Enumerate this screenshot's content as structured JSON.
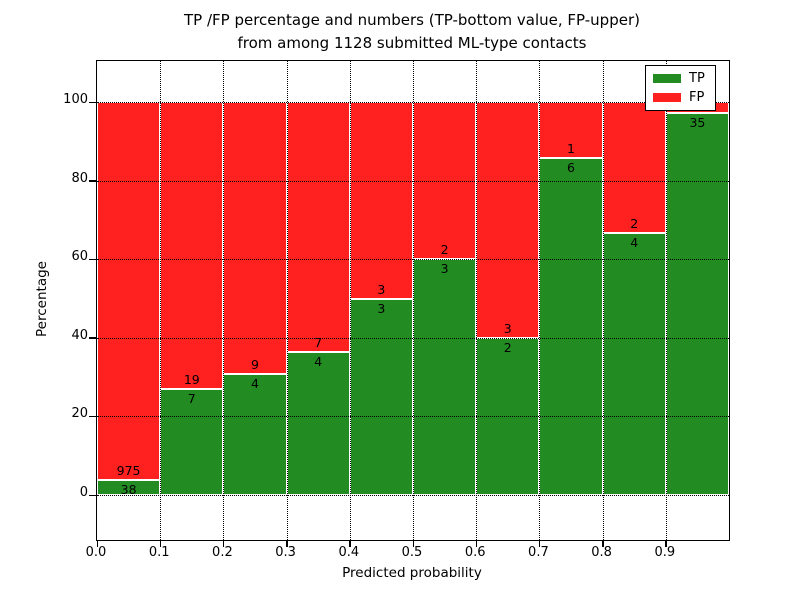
{
  "title": {
    "line1": "TP /FP percentage and numbers (TP-bottom value, FP-upper)",
    "line2": "from among 1128 submitted ML-type contacts"
  },
  "axes": {
    "x_label": "Predicted probability",
    "y_label": "Percentage",
    "x_ticks": [
      "0.0",
      "0.1",
      "0.2",
      "0.3",
      "0.4",
      "0.5",
      "0.6",
      "0.7",
      "0.8",
      "0.9"
    ],
    "y_ticks": [
      "0",
      "20",
      "40",
      "60",
      "80",
      "100"
    ]
  },
  "legend": [
    {
      "label": "TP",
      "color": "#228B22"
    },
    {
      "label": "FP",
      "color": "#FF2020"
    }
  ],
  "chart_data": {
    "type": "bar",
    "stacked": true,
    "normalized": "percent",
    "title": "TP /FP percentage and numbers (TP-bottom value, FP-upper) from among 1128 submitted ML-type contacts",
    "xlabel": "Predicted probability",
    "ylabel": "Percentage",
    "bins": [
      "0.0-0.1",
      "0.1-0.2",
      "0.2-0.3",
      "0.3-0.4",
      "0.4-0.5",
      "0.5-0.6",
      "0.6-0.7",
      "0.7-0.8",
      "0.8-0.9",
      "0.9-1.0"
    ],
    "series": [
      {
        "name": "TP",
        "color": "#228B22",
        "counts": [
          38,
          7,
          4,
          4,
          3,
          3,
          2,
          6,
          4,
          35
        ]
      },
      {
        "name": "FP",
        "color": "#FF2020",
        "counts": [
          975,
          19,
          9,
          7,
          3,
          2,
          3,
          1,
          2,
          1
        ]
      }
    ],
    "tp_percent": [
      3.75,
      26.92,
      30.77,
      36.36,
      50.0,
      60.0,
      40.0,
      85.71,
      66.67,
      97.22
    ],
    "total_contacts": 1128,
    "xlim": [
      0.0,
      1.0
    ],
    "ylim": [
      -12,
      111
    ],
    "grid": "dotted",
    "legend_position": "upper right"
  }
}
